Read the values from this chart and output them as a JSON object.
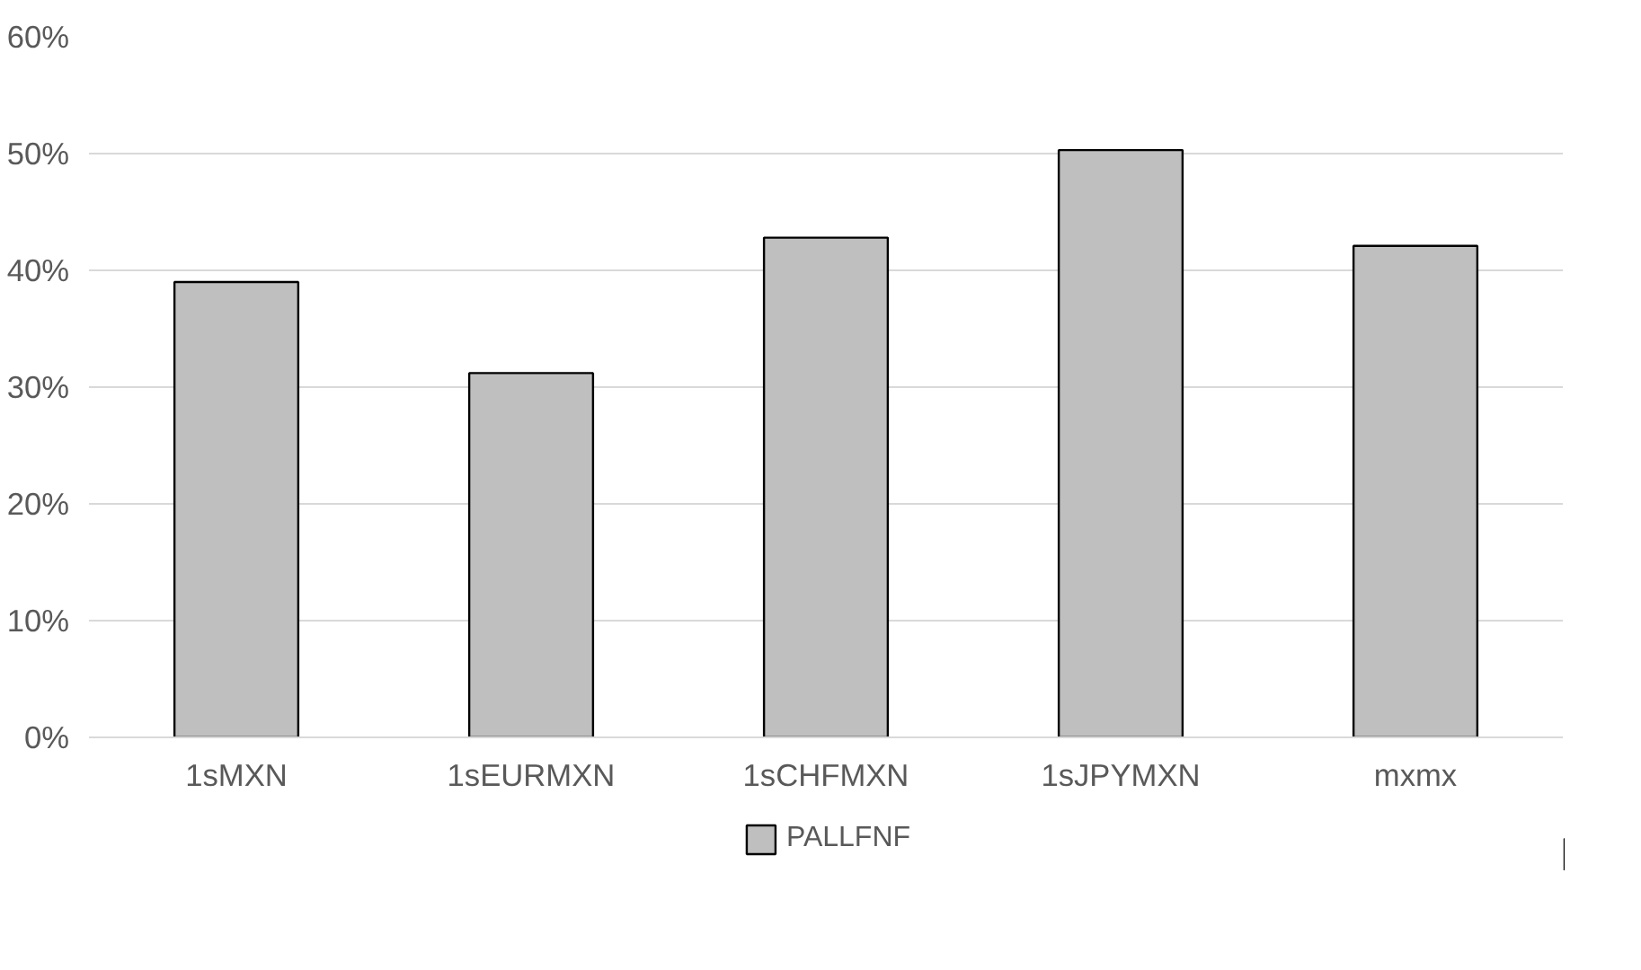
{
  "chart_data": {
    "type": "bar",
    "categories": [
      "1sMXN",
      "1sEURMXN",
      "1sCHFMXN",
      "1sJPYMXN",
      "mxmx"
    ],
    "series": [
      {
        "name": "PALLFNF",
        "color": "#bfbfbf",
        "values": [
          39.0,
          31.2,
          42.8,
          50.3,
          42.1
        ]
      }
    ],
    "ylim": [
      0,
      60
    ],
    "yticks": [
      {
        "value": 0,
        "label": "0%"
      },
      {
        "value": 10,
        "label": "10%"
      },
      {
        "value": 20,
        "label": "20%"
      },
      {
        "value": 30,
        "label": "30%"
      },
      {
        "value": 40,
        "label": "40%"
      },
      {
        "value": 50,
        "label": "50%"
      },
      {
        "value": 60,
        "label": "60%"
      }
    ],
    "grid": "y",
    "legend": "bottom"
  }
}
